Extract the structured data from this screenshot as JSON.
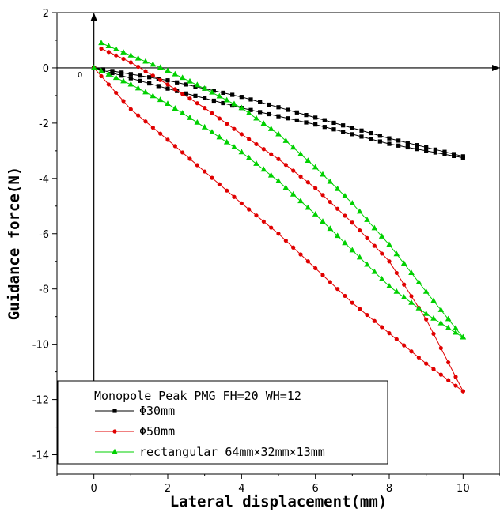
{
  "chart_data": {
    "type": "line",
    "title": "",
    "xlabel": "Lateral displacement(mm)",
    "ylabel": "Guidance force(N)",
    "xlim": [
      -1,
      11
    ],
    "ylim": [
      -14.7,
      2
    ],
    "x_ticks": [
      "0",
      "2",
      "4",
      "6",
      "8",
      "10"
    ],
    "y_ticks": [
      "2",
      "0",
      "-2",
      "-4",
      "-6",
      "-8",
      "-10",
      "-12",
      "-14"
    ],
    "origin_label": "0",
    "legend": {
      "title": "Monopole Peak PMG FH=20 WH=12",
      "placement": "bottom-left"
    },
    "series": [
      {
        "name": "Φ30mm",
        "color": "#000000",
        "marker": "square",
        "outward": [
          [
            0,
            0.0
          ],
          [
            2,
            -0.45
          ],
          [
            4,
            -1.05
          ],
          [
            6,
            -1.8
          ],
          [
            8,
            -2.55
          ],
          [
            10,
            -3.2
          ]
        ],
        "return": [
          [
            10,
            -3.25
          ],
          [
            8,
            -2.75
          ],
          [
            6,
            -2.05
          ],
          [
            4,
            -1.45
          ],
          [
            2,
            -0.75
          ],
          [
            0,
            0.0
          ]
        ]
      },
      {
        "name": "Φ50mm",
        "color": "#e00000",
        "marker": "circle",
        "outward": [
          [
            0,
            0.0
          ],
          [
            1,
            -1.5
          ],
          [
            2,
            -2.6
          ],
          [
            3,
            -3.75
          ],
          [
            4,
            -4.9
          ],
          [
            5,
            -6.0
          ],
          [
            6,
            -7.25
          ],
          [
            7,
            -8.5
          ],
          [
            8,
            -9.6
          ],
          [
            9,
            -10.7
          ],
          [
            10,
            -11.7
          ]
        ],
        "return": [
          [
            10,
            -11.7
          ],
          [
            9,
            -9.1
          ],
          [
            8,
            -7.0
          ],
          [
            7,
            -5.6
          ],
          [
            6,
            -4.35
          ],
          [
            5,
            -3.3
          ],
          [
            4,
            -2.4
          ],
          [
            3,
            -1.45
          ],
          [
            2,
            -0.6
          ],
          [
            1,
            0.2
          ],
          [
            0.2,
            0.7
          ]
        ]
      },
      {
        "name": "rectangular 64mm×32mm×13mm",
        "color": "#00d000",
        "marker": "triangle",
        "outward": [
          [
            0,
            0.0
          ],
          [
            1,
            -0.6
          ],
          [
            2,
            -1.3
          ],
          [
            3,
            -2.15
          ],
          [
            4,
            -3.05
          ],
          [
            5,
            -4.1
          ],
          [
            6,
            -5.3
          ],
          [
            7,
            -6.6
          ],
          [
            8,
            -7.9
          ],
          [
            9,
            -8.9
          ],
          [
            10,
            -9.75
          ]
        ],
        "return": [
          [
            10,
            -9.75
          ],
          [
            9,
            -8.1
          ],
          [
            8,
            -6.4
          ],
          [
            7,
            -4.9
          ],
          [
            6,
            -3.6
          ],
          [
            5,
            -2.4
          ],
          [
            4,
            -1.45
          ],
          [
            3,
            -0.75
          ],
          [
            2,
            -0.1
          ],
          [
            1,
            0.45
          ],
          [
            0.2,
            0.9
          ]
        ]
      }
    ]
  }
}
